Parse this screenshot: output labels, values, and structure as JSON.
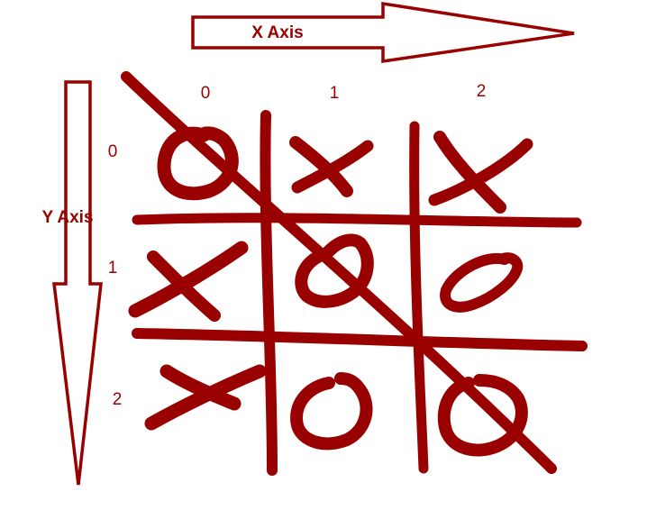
{
  "colors": {
    "ink": "#990000",
    "background": "#ffffff"
  },
  "x_axis": {
    "label": "X Axis",
    "ticks": [
      "0",
      "1",
      "2"
    ]
  },
  "y_axis": {
    "label": "Y Axis",
    "ticks": [
      "0",
      "1",
      "2"
    ]
  },
  "board": {
    "cells": [
      [
        "O",
        "X",
        "X"
      ],
      [
        "X",
        "O",
        "O"
      ],
      [
        "X",
        "O",
        "O"
      ]
    ],
    "winning_line": "diagonal from cell (0,0) to cell (2,2)"
  }
}
